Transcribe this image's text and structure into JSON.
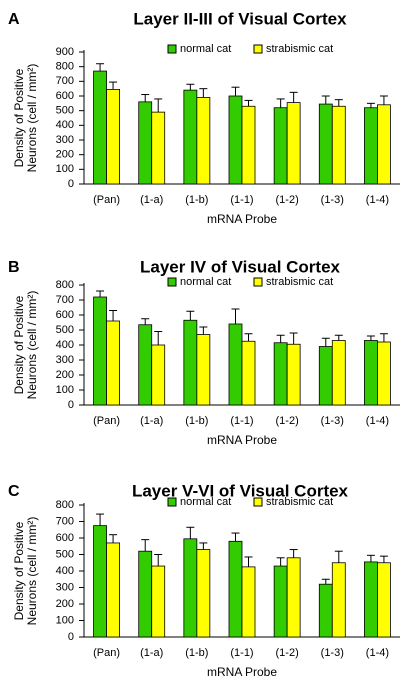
{
  "chart_data": [
    {
      "type": "bar",
      "panel": "A",
      "title": "Layer II-III of Visual Cortex",
      "ylabel": [
        "Density of Positive",
        "Neurons (cell / mm²)"
      ],
      "xlabel": "mRNA Probe",
      "categories": [
        "(Pan)",
        "(1-a)",
        "(1-b)",
        "(1-1)",
        "(1-2)",
        "(1-3)",
        "(1-4)"
      ],
      "series": [
        {
          "name": "normal cat",
          "color": "#33cc00",
          "values": [
            770,
            560,
            640,
            600,
            520,
            545,
            520
          ],
          "errors": [
            50,
            50,
            40,
            60,
            60,
            55,
            30
          ]
        },
        {
          "name": "strabismic cat",
          "color": "#ffff00",
          "values": [
            645,
            490,
            590,
            530,
            555,
            530,
            540
          ],
          "errors": [
            50,
            90,
            60,
            40,
            70,
            45,
            60
          ]
        }
      ],
      "ylim": [
        0,
        900
      ],
      "yticks": [
        0,
        100,
        200,
        300,
        400,
        500,
        600,
        700,
        800,
        900
      ]
    },
    {
      "type": "bar",
      "panel": "B",
      "title": "Layer IV of Visual Cortex",
      "ylabel": [
        "Density of Positive",
        "Neurons (cell / mm²)"
      ],
      "xlabel": "mRNA Probe",
      "categories": [
        "(Pan)",
        "(1-a)",
        "(1-b)",
        "(1-1)",
        "(1-2)",
        "(1-3)",
        "(1-4)"
      ],
      "series": [
        {
          "name": "normal cat",
          "color": "#33cc00",
          "values": [
            720,
            535,
            565,
            540,
            415,
            390,
            430
          ],
          "errors": [
            40,
            40,
            60,
            100,
            50,
            55,
            30
          ]
        },
        {
          "name": "strabismic cat",
          "color": "#ffff00",
          "values": [
            560,
            400,
            470,
            425,
            405,
            430,
            420
          ],
          "errors": [
            70,
            90,
            50,
            50,
            75,
            35,
            55
          ]
        }
      ],
      "ylim": [
        0,
        800
      ],
      "yticks": [
        0,
        100,
        200,
        300,
        400,
        500,
        600,
        700,
        800
      ]
    },
    {
      "type": "bar",
      "panel": "C",
      "title": "Layer V-VI of Visual Cortex",
      "ylabel": [
        "Density of Positive",
        "Neurons (cell / mm²)"
      ],
      "xlabel": "mRNA Probe",
      "categories": [
        "(Pan)",
        "(1-a)",
        "(1-b)",
        "(1-1)",
        "(1-2)",
        "(1-3)",
        "(1-4)"
      ],
      "series": [
        {
          "name": "normal cat",
          "color": "#33cc00",
          "values": [
            675,
            520,
            595,
            580,
            430,
            320,
            455
          ],
          "errors": [
            70,
            70,
            70,
            50,
            50,
            30,
            40
          ]
        },
        {
          "name": "strabismic cat",
          "color": "#ffff00",
          "values": [
            570,
            430,
            530,
            425,
            480,
            450,
            450
          ],
          "errors": [
            50,
            70,
            40,
            60,
            50,
            70,
            40
          ]
        }
      ],
      "ylim": [
        0,
        800
      ],
      "yticks": [
        0,
        100,
        200,
        300,
        400,
        500,
        600,
        700,
        800
      ]
    }
  ]
}
